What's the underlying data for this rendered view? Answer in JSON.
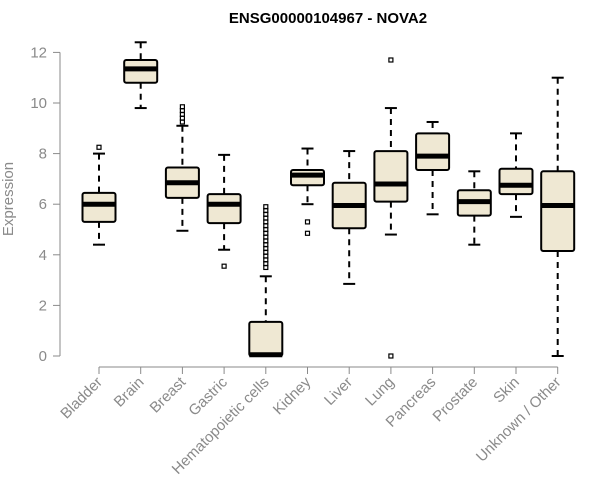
{
  "chart_data": {
    "type": "boxplot",
    "title": "ENSG00000104967 - NOVA2",
    "ylabel": "Expression",
    "xlabel": "",
    "ylim": [
      0,
      12.5
    ],
    "yticks": [
      0,
      2,
      4,
      6,
      8,
      10,
      12
    ],
    "grid": false,
    "colors": {
      "box_fill": "#efe8d3",
      "stroke": "#000000",
      "axis": "#8a8a8a"
    },
    "categories": [
      "Bladder",
      "Brain",
      "Breast",
      "Gastric",
      "Hematopoietic cells",
      "Kidney",
      "Liver",
      "Lung",
      "Pancreas",
      "Prostate",
      "Skin",
      "Unknown / Other"
    ],
    "boxes": [
      {
        "category": "Bladder",
        "whisker_low": 4.4,
        "q1": 5.3,
        "median": 6.0,
        "q3": 6.45,
        "whisker_high": 8.0,
        "outliers": [
          8.25
        ]
      },
      {
        "category": "Brain",
        "whisker_low": 9.8,
        "q1": 10.8,
        "median": 11.35,
        "q3": 11.7,
        "whisker_high": 12.4,
        "outliers": []
      },
      {
        "category": "Breast",
        "whisker_low": 4.95,
        "q1": 6.25,
        "median": 6.85,
        "q3": 7.45,
        "whisker_high": 9.1,
        "outliers": [
          9.25,
          9.4,
          9.55,
          9.7,
          9.85
        ]
      },
      {
        "category": "Gastric",
        "whisker_low": 4.2,
        "q1": 5.25,
        "median": 6.0,
        "q3": 6.4,
        "whisker_high": 7.95,
        "outliers": [
          3.55
        ]
      },
      {
        "category": "Hematopoietic cells",
        "whisker_low": 0.0,
        "q1": 0.0,
        "median": 0.05,
        "q3": 1.35,
        "whisker_high": 3.15,
        "outliers": [
          3.5,
          3.65,
          3.8,
          3.95,
          4.1,
          4.25,
          4.4,
          4.55,
          4.7,
          4.85,
          5.0,
          5.15,
          5.3,
          5.45,
          5.6,
          5.75,
          5.9
        ]
      },
      {
        "category": "Kidney",
        "whisker_low": 6.0,
        "q1": 6.75,
        "median": 7.15,
        "q3": 7.35,
        "whisker_high": 8.2,
        "outliers": [
          5.3,
          4.85
        ]
      },
      {
        "category": "Liver",
        "whisker_low": 2.85,
        "q1": 5.05,
        "median": 5.95,
        "q3": 6.85,
        "whisker_high": 8.1,
        "outliers": []
      },
      {
        "category": "Lung",
        "whisker_low": 4.8,
        "q1": 6.1,
        "median": 6.8,
        "q3": 8.1,
        "whisker_high": 9.8,
        "outliers": [
          11.7,
          0.0
        ]
      },
      {
        "category": "Pancreas",
        "whisker_low": 5.6,
        "q1": 7.35,
        "median": 7.9,
        "q3": 8.8,
        "whisker_high": 9.25,
        "outliers": []
      },
      {
        "category": "Prostate",
        "whisker_low": 4.4,
        "q1": 5.55,
        "median": 6.1,
        "q3": 6.55,
        "whisker_high": 7.3,
        "outliers": []
      },
      {
        "category": "Skin",
        "whisker_low": 5.5,
        "q1": 6.4,
        "median": 6.75,
        "q3": 7.4,
        "whisker_high": 8.8,
        "outliers": []
      },
      {
        "category": "Unknown / Other",
        "whisker_low": 0.0,
        "q1": 4.15,
        "median": 5.95,
        "q3": 7.3,
        "whisker_high": 11.0,
        "outliers": []
      }
    ]
  }
}
